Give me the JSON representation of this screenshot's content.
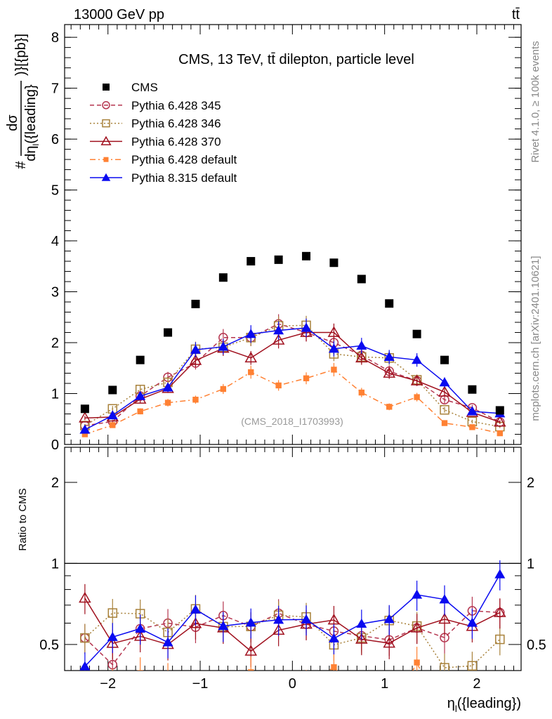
{
  "header": {
    "energy": "13000 GeV pp",
    "process": "tt̄"
  },
  "side": {
    "rivet": "Rivet 4.1.0, ≥ 100k events",
    "mcplots": "mcplots.cern.ch [arXiv:2401.10621]"
  },
  "chart_data": {
    "type": "scatter",
    "title": "CMS, 13 TeV, tt̄ dilepton, particle level",
    "watermark": "(CMS_2018_I1703993)",
    "ylabel": {
      "prefix": "#",
      "num": "dσ",
      "den": "dη",
      "den_sub": "l",
      "den_rest": "({leading}",
      "suffix": ")}[{pb}]"
    },
    "xlabel": {
      "main": "η",
      "sub": "l",
      "rest": "({leading})"
    },
    "ratio_ylabel": "Ratio to CMS",
    "xlim": [
      -2.47,
      2.48
    ],
    "ylim": [
      0,
      8.25
    ],
    "ratio_ylim": [
      0.4,
      2.7
    ],
    "ratio_scale": "log",
    "xticks": [
      {
        "v": -2,
        "label": "−2"
      },
      {
        "v": -1,
        "label": "−1"
      },
      {
        "v": 0,
        "label": "0"
      },
      {
        "v": 1,
        "label": "1"
      },
      {
        "v": 2,
        "label": "2"
      }
    ],
    "yticks": [
      {
        "v": 0,
        "label": "0"
      },
      {
        "v": 1,
        "label": "1"
      },
      {
        "v": 2,
        "label": "2"
      },
      {
        "v": 3,
        "label": "3"
      },
      {
        "v": 4,
        "label": "4"
      },
      {
        "v": 5,
        "label": "5"
      },
      {
        "v": 6,
        "label": "6"
      },
      {
        "v": 7,
        "label": "7"
      },
      {
        "v": 8,
        "label": "8"
      }
    ],
    "ratio_yticks": [
      {
        "v": 0.5,
        "label": "0.5"
      },
      {
        "v": 1,
        "label": "1"
      },
      {
        "v": 2,
        "label": "2"
      }
    ],
    "x": [
      -2.25,
      -1.95,
      -1.65,
      -1.35,
      -1.05,
      -0.75,
      -0.45,
      -0.15,
      0.15,
      0.45,
      0.75,
      1.05,
      1.35,
      1.65,
      1.95,
      2.25
    ],
    "legend_position": "top-left",
    "series": [
      {
        "name": "CMS",
        "color": "#000000",
        "marker": "square-filled",
        "line": "none",
        "rel_error": 0.0,
        "values": [
          0.7,
          1.07,
          1.66,
          2.2,
          2.76,
          3.28,
          3.6,
          3.63,
          3.7,
          3.57,
          3.25,
          2.77,
          2.17,
          1.66,
          1.08,
          0.67
        ]
      },
      {
        "name": "Pythia 6.428 345",
        "color": "#b5354f",
        "marker": "circle-open",
        "line": "dashed",
        "rel_error": 0.08,
        "values": [
          0.37,
          0.45,
          0.95,
          1.32,
          1.6,
          2.1,
          2.1,
          2.37,
          2.2,
          2.0,
          1.75,
          1.44,
          1.25,
          0.88,
          0.72,
          0.44
        ]
      },
      {
        "name": "Pythia 6.428 346",
        "color": "#a8813a",
        "marker": "square-open",
        "line": "dotted",
        "rel_error": 0.08,
        "values": [
          0.37,
          0.7,
          1.08,
          1.22,
          1.87,
          1.91,
          2.1,
          2.33,
          2.34,
          1.78,
          1.72,
          1.7,
          1.27,
          0.68,
          0.45,
          0.35
        ]
      },
      {
        "name": "Pythia 6.428 370",
        "color": "#a0101e",
        "marker": "triangle-open",
        "line": "solid",
        "rel_error": 0.08,
        "values": [
          0.52,
          0.54,
          0.89,
          1.1,
          1.65,
          1.89,
          1.7,
          2.05,
          2.2,
          2.2,
          1.7,
          1.4,
          1.25,
          1.03,
          0.63,
          0.44
        ]
      },
      {
        "name": "Pythia 6.428 default",
        "color": "#ff8133",
        "marker": "square-filled-small",
        "line": "dashdot",
        "rel_error": 0.09,
        "values": [
          0.2,
          0.38,
          0.65,
          0.82,
          0.88,
          1.09,
          1.42,
          1.16,
          1.3,
          1.47,
          1.02,
          0.74,
          0.93,
          0.42,
          0.34,
          0.22
        ]
      },
      {
        "name": "Pythia 8.315 default",
        "color": "#0a0af0",
        "marker": "triangle-filled",
        "line": "solid",
        "rel_error": 0.08,
        "values": [
          0.29,
          0.57,
          0.95,
          1.12,
          1.86,
          1.92,
          2.17,
          2.24,
          2.29,
          1.88,
          1.94,
          1.72,
          1.66,
          1.22,
          0.65,
          0.61
        ]
      }
    ]
  }
}
